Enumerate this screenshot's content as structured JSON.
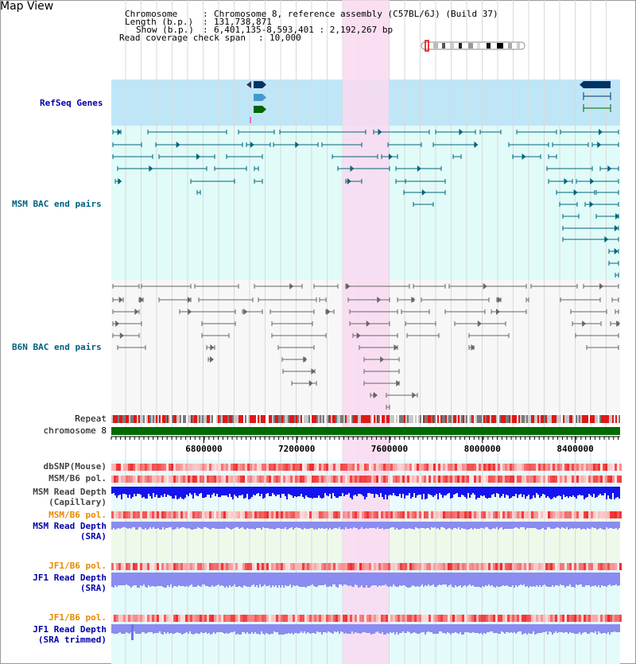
{
  "title": "Map View",
  "info": {
    "chromosome_key": "Chromosome",
    "chromosome_val": "Chromosome 8, reference assembly (C57BL/6J) (Build 37)",
    "length_key": "Length (b.p.)",
    "length_val": "131,738,871",
    "show_key": "Show (b.p.)",
    "show_val": "6,401,135-8,593,401 : 2,192,267 bp",
    "coverage_key": "Read coverage check span",
    "coverage_val": "10,000"
  },
  "tracks": {
    "refseq": "RefSeq Genes",
    "msm_bac": "MSM BAC end pairs",
    "b6n_bac": "B6N BAC end pairs",
    "repeat": "Repeat",
    "chromosome": "chromosome 8",
    "dbsnp": "dbSNP(Mouse)",
    "msm_b6_pol": "MSM/B6 pol.",
    "msm_depth_cap_1": "MSM Read Depth",
    "msm_depth_cap_2": "(Capillary)",
    "msm_b6_pol_2": "MSM/B6 pol.",
    "msm_depth_sra_1": "MSM Read Depth",
    "msm_depth_sra_2": "(SRA)",
    "jf1_b6_pol": "JF1/B6 pol.",
    "jf1_depth_sra_1": "JF1 Read Depth",
    "jf1_depth_sra_2": "(SRA)",
    "jf1_b6_pol_2": "JF1/B6 pol.",
    "jf1_depth_trim_1": "JF1 Read Depth",
    "jf1_depth_trim_2": "(SRA trimmed)"
  },
  "axis": {
    "range_bp": [
      6401135,
      8593401
    ],
    "ticks": [
      "6800000",
      "7200000",
      "7600000",
      "8000000",
      "8400000"
    ]
  },
  "highlight_range_bp": [
    7400000,
    7600000
  ],
  "colors": {
    "refseq_bg": "#bfe6f7",
    "msm_bac_bg": "#e0fbf8",
    "b6n_bac_bg": "#f7f7f7",
    "highlight": "#f9d9f1",
    "msm_bac_line": "#00647a",
    "b6n_bac_line": "#666666",
    "chromosome_bar": "#006b00",
    "depth_capillary": "#1414ee",
    "depth_sra": "#8a8cf0",
    "pol_red": "#ee2a2a",
    "label_navy": "#0000aa",
    "label_teal": "#006080",
    "label_orange": "#e88a00",
    "refseq_gene_1": "#003366",
    "refseq_gene_2": "#4499cc",
    "refseq_gene_3": "#006600"
  }
}
